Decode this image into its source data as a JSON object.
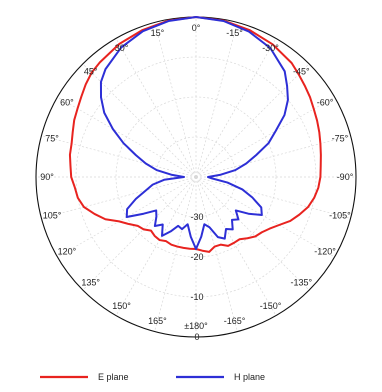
{
  "chart_data": {
    "type": "polar",
    "orientation": "0° at top, clockwise labels with negative values on right",
    "r_ticks": [
      "-30",
      "-20",
      "-10",
      "0"
    ],
    "r_tick_values": [
      -30,
      -20,
      -10,
      0
    ],
    "r_range": [
      -40,
      0
    ],
    "angle_labels": [
      {
        "deg": 0,
        "text": "0°"
      },
      {
        "deg": 15,
        "text": "15°"
      },
      {
        "deg": 30,
        "text": "30°"
      },
      {
        "deg": 45,
        "text": "45°"
      },
      {
        "deg": 60,
        "text": "60°"
      },
      {
        "deg": 75,
        "text": "75°"
      },
      {
        "deg": 90,
        "text": "90°"
      },
      {
        "deg": 105,
        "text": "105°"
      },
      {
        "deg": 120,
        "text": "120°"
      },
      {
        "deg": 135,
        "text": "135°"
      },
      {
        "deg": 150,
        "text": "150°"
      },
      {
        "deg": 165,
        "text": "165°"
      },
      {
        "deg": 180,
        "text": "±180°"
      },
      {
        "deg": -165,
        "text": "-165°"
      },
      {
        "deg": -150,
        "text": "-150°"
      },
      {
        "deg": -135,
        "text": "-135°"
      },
      {
        "deg": -120,
        "text": "-120°"
      },
      {
        "deg": -105,
        "text": "-105°"
      },
      {
        "deg": -90,
        "text": "-90°"
      },
      {
        "deg": -75,
        "text": "-75°"
      },
      {
        "deg": -60,
        "text": "-60°"
      },
      {
        "deg": -45,
        "text": "-45°"
      },
      {
        "deg": -30,
        "text": "-30°"
      },
      {
        "deg": -15,
        "text": "-15°"
      }
    ],
    "grid": true,
    "legend_position": "bottom",
    "series": [
      {
        "name": "E plane",
        "color": "#e8231f",
        "theta": [
          0,
          10,
          20,
          30,
          40,
          45,
          50,
          55,
          60,
          65,
          70,
          75,
          80,
          85,
          90,
          95,
          100,
          105,
          110,
          115,
          120,
          125,
          130,
          135,
          140,
          145,
          150,
          155,
          160,
          165,
          170,
          175,
          180,
          185,
          190,
          195,
          200,
          205,
          210,
          215,
          220,
          225,
          230,
          235,
          240,
          245,
          250,
          255,
          260,
          265,
          270,
          275,
          280,
          285,
          290,
          295,
          300,
          305,
          310,
          315,
          320,
          330,
          340,
          350,
          360
        ],
        "r": [
          0,
          -0.3,
          -0.9,
          -1.6,
          -2.6,
          -3.1,
          -4,
          -5,
          -5.8,
          -6.4,
          -7.2,
          -7.8,
          -8,
          -8.5,
          -8.8,
          -9.6,
          -10,
          -11,
          -13,
          -15,
          -17.8,
          -19.5,
          -21,
          -21.5,
          -22.5,
          -22,
          -21.8,
          -22.3,
          -22,
          -22,
          -22,
          -22,
          -22,
          -21.5,
          -21,
          -22,
          -22,
          -21,
          -21,
          -21,
          -20,
          -19,
          -18.5,
          -17.5,
          -16,
          -14,
          -12.5,
          -11,
          -10,
          -9.3,
          -8.9,
          -8.7,
          -8.3,
          -7.8,
          -7.2,
          -6.6,
          -6,
          -5.2,
          -4.5,
          -3.7,
          -2.8,
          -1.7,
          -0.9,
          -0.3,
          0
        ]
      },
      {
        "name": "H plane",
        "color": "#2d2fd6",
        "theta": [
          0,
          10,
          20,
          30,
          40,
          45,
          50,
          55,
          60,
          65,
          70,
          75,
          80,
          85,
          90,
          95,
          100,
          105,
          110,
          115,
          120,
          125,
          130,
          135,
          140,
          145,
          150,
          155,
          160,
          165,
          170,
          175,
          180,
          185,
          190,
          195,
          200,
          205,
          210,
          215,
          220,
          225,
          230,
          235,
          240,
          245,
          250,
          255,
          260,
          265,
          270,
          275,
          280,
          285,
          290,
          295,
          300,
          305,
          310,
          315,
          320,
          330,
          340,
          350,
          360
        ],
        "r": [
          0,
          -0.4,
          -1.2,
          -2.6,
          -4.8,
          -6.4,
          -9,
          -12,
          -16,
          -20,
          -24,
          -27,
          -30,
          -34,
          -37,
          -32,
          -29,
          -27,
          -24,
          -21,
          -20,
          -24,
          -27,
          -26,
          -24,
          -25.5,
          -23,
          -25,
          -27,
          -26.5,
          -28,
          -25,
          -22,
          -25,
          -28,
          -27,
          -24,
          -23,
          -25,
          -24,
          -26,
          -25,
          -27,
          -24,
          -21,
          -22,
          -25,
          -28,
          -32,
          -36,
          -37,
          -34,
          -30,
          -27,
          -24,
          -20,
          -17,
          -13,
          -10,
          -7.8,
          -5.5,
          -2.8,
          -1.3,
          -0.4,
          0
        ]
      }
    ]
  }
}
